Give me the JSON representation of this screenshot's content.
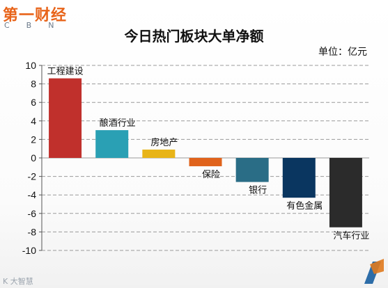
{
  "header": {
    "logo_text": "第一财经",
    "logo_sub": "CBN",
    "title": "今日热门板块大单净额",
    "unit": "单位：亿元"
  },
  "footer": {
    "brand": "K 大智慧"
  },
  "colors": {
    "grid": "#9a9a9a",
    "axis": "#555555"
  },
  "chart_data": {
    "type": "bar",
    "title": "今日热门板块大单净额",
    "xlabel": "",
    "ylabel": "",
    "ylim": [
      -10,
      10
    ],
    "yticks": [
      10,
      8,
      6,
      4,
      2,
      0,
      -2,
      -4,
      -6,
      -8,
      -10
    ],
    "grid": true,
    "categories": [
      "工程建设",
      "酿酒行业",
      "房地产",
      "保险",
      "银行",
      "有色金属",
      "汽车行业"
    ],
    "values": [
      8.6,
      3.0,
      0.9,
      -0.9,
      -2.6,
      -4.3,
      -7.5
    ],
    "colors": [
      "#c0302c",
      "#2aa0b4",
      "#e8b418",
      "#e0631c",
      "#2a6d86",
      "#0a3660",
      "#2b2b2b"
    ]
  }
}
